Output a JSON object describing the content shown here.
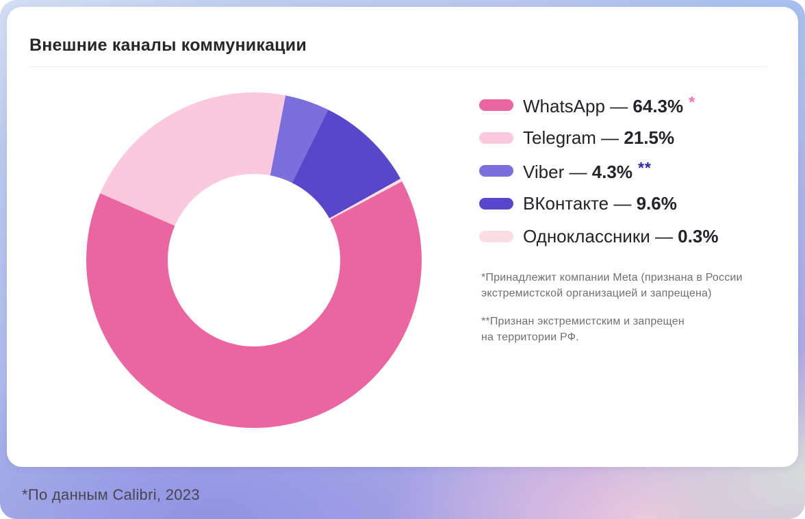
{
  "header": {
    "title": "Внешние каналы коммуникации"
  },
  "chart_data": {
    "type": "pie",
    "subtype": "donut",
    "title": "Внешние каналы коммуникации",
    "legend_position": "right",
    "start_angle_deg_clockwise_from_top": 62,
    "separator": " — ",
    "series": [
      {
        "label": "WhatsApp",
        "value": 64.3,
        "display": "64.3%",
        "color": "#EB65A0",
        "marker": "*",
        "marker_color": "#F56EB6"
      },
      {
        "label": "Telegram",
        "value": 21.5,
        "display": "21.5%",
        "color": "#FBC9DD",
        "marker": "",
        "marker_color": ""
      },
      {
        "label": "Viber",
        "value": 4.3,
        "display": "4.3%",
        "color": "#7A70DB",
        "marker": "**",
        "marker_color": "#2B27AC"
      },
      {
        "label": "ВКонтакте",
        "value": 9.6,
        "display": "9.6%",
        "color": "#5847CA",
        "marker": "",
        "marker_color": ""
      },
      {
        "label": "Одноклассники",
        "value": 0.3,
        "display": "0.3%",
        "color": "#FBDEE2",
        "marker": "",
        "marker_color": ""
      }
    ]
  },
  "footnotes": [
    {
      "lines": [
        "*Принадлежит компании Meta (признана в России",
        "экстремистской организацией и запрещена)"
      ]
    },
    {
      "lines": [
        "**Признан экстремистским и запрещен",
        "на территории РФ."
      ]
    }
  ],
  "footer": {
    "text": "*По данным Calibri, 2023"
  },
  "colors": {
    "title": "#26262B",
    "legend_text": "#232329",
    "footnote": "#6E6F73",
    "footer_text": "#46464E",
    "divider": "#EBEBEF",
    "card_bg": "#FFFFFF"
  },
  "background": {
    "bg_top_left": "#D3DEF3",
    "bg_top_right": "#A6C0EE",
    "bg_bottom_left": "#9193E2",
    "bg_bottom_mid": "#AB9DE4",
    "bg_bottom_pink": "#ECC5DD",
    "bg_bottom_right": "#D8DCD9"
  }
}
